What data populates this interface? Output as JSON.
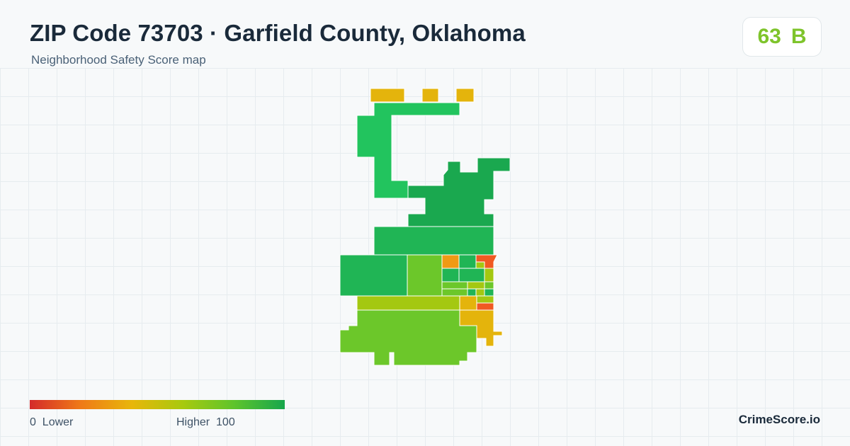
{
  "header": {
    "title": "ZIP Code 73703 · Garfield County, Oklahoma",
    "subtitle": "Neighborhood Safety Score map"
  },
  "score": {
    "value": "63",
    "grade": "B",
    "color": "#7ec42b"
  },
  "legend": {
    "min_value": "0",
    "min_label": "Lower",
    "max_label": "Higher",
    "max_value": "100",
    "gradient": [
      "#d42a2a",
      "#ef7a18",
      "#e8b60a",
      "#a8c90e",
      "#5fc42c",
      "#17a64c"
    ]
  },
  "brand": "CrimeScore.io",
  "colors": {
    "high_green": "#1aa84f",
    "green": "#22c45e",
    "light_green": "#6cc72a",
    "yellow_green": "#a4c811",
    "yellow": "#e4b40c",
    "orange": "#f09a14",
    "red_orange": "#f05a22"
  }
}
